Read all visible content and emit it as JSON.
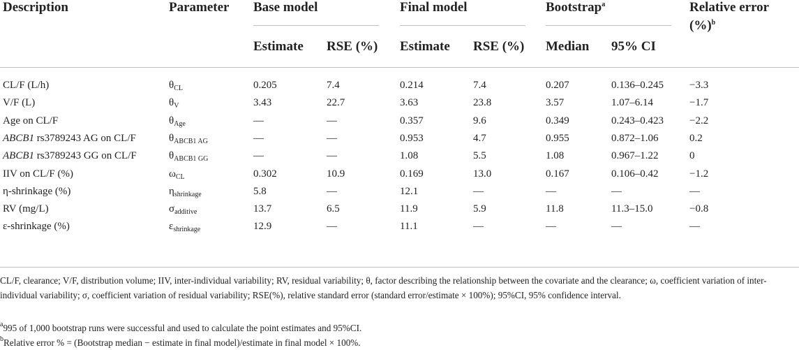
{
  "headers": {
    "description": "Description",
    "parameter": "Parameter",
    "base_model": "Base model",
    "final_model": "Final model",
    "bootstrap": "Bootstrap",
    "bootstrap_sup": "a",
    "relative_error_1": "Relative error",
    "relative_error_2": "(%)",
    "relative_error_sup": "b",
    "estimate_base": "Estimate",
    "rse_base": "RSE (%)",
    "estimate_final": "Estimate",
    "rse_final": "RSE (%)",
    "median": "Median",
    "ci": "95% CI"
  },
  "rows": [
    {
      "desc_italic": "",
      "desc": "CL/F (L/h)",
      "param": "θ",
      "param_sub": "CL",
      "base_est": "0.205",
      "base_rse": "7.4",
      "final_est": "0.214",
      "final_rse": "7.4",
      "median": "0.207",
      "ci": "0.136–0.245",
      "rel": "−3.3"
    },
    {
      "desc_italic": "",
      "desc": "V/F (L)",
      "param": "θ",
      "param_sub": "V",
      "base_est": "3.43",
      "base_rse": "22.7",
      "final_est": "3.63",
      "final_rse": "23.8",
      "median": "3.57",
      "ci": "1.07–6.14",
      "rel": "−1.7"
    },
    {
      "desc_italic": "",
      "desc": "Age on CL/F",
      "param": "θ",
      "param_sub": "Age",
      "base_est": "—",
      "base_rse": "—",
      "final_est": "0.357",
      "final_rse": "9.6",
      "median": "0.349",
      "ci": "0.243–0.423",
      "rel": "−2.2"
    },
    {
      "desc_italic": "ABCB1",
      "desc": " rs3789243 AG on CL/F",
      "param": "θ",
      "param_sub": "ABCB1 AG",
      "base_est": "—",
      "base_rse": "—",
      "final_est": "0.953",
      "final_rse": "4.7",
      "median": "0.955",
      "ci": "0.872–1.06",
      "rel": "0.2"
    },
    {
      "desc_italic": "ABCB1",
      "desc": " rs3789243 GG on CL/F",
      "param": "θ",
      "param_sub": "ABCB1 GG",
      "base_est": "—",
      "base_rse": "—",
      "final_est": "1.08",
      "final_rse": "5.5",
      "median": "1.08",
      "ci": "0.967–1.22",
      "rel": "0"
    },
    {
      "desc_italic": "",
      "desc": "IIV on CL/F (%)",
      "param": "ω",
      "param_sub": "CL",
      "base_est": "0.302",
      "base_rse": "10.9",
      "final_est": "0.169",
      "final_rse": "13.0",
      "median": "0.167",
      "ci": "0.106–0.42",
      "rel": "−1.2"
    },
    {
      "desc_italic": "",
      "desc": "η-shrinkage (%)",
      "param": "η",
      "param_sub": "shrinkage",
      "base_est": "5.8",
      "base_rse": "—",
      "final_est": "12.1",
      "final_rse": "—",
      "median": "—",
      "ci": "—",
      "rel": "—"
    },
    {
      "desc_italic": "",
      "desc": "RV (mg/L)",
      "param": "σ",
      "param_sub": "additive",
      "base_est": "13.7",
      "base_rse": "6.5",
      "final_est": "11.9",
      "final_rse": "5.9",
      "median": "11.8",
      "ci": "11.3–15.0",
      "rel": "−0.8"
    },
    {
      "desc_italic": "",
      "desc": "ε-shrinkage (%)",
      "param": "ε",
      "param_sub": "shrinkage",
      "base_est": "12.9",
      "base_rse": "—",
      "final_est": "11.1",
      "final_rse": "—",
      "median": "—",
      "ci": "—",
      "rel": "—"
    }
  ],
  "footnotes": {
    "abbreviations": "CL/F, clearance; V/F, distribution volume; IIV, inter-individual variability; RV, residual variability; θ, factor describing the relationship between the covariate and the clearance; ω, coefficient variation of inter-individual variability; σ, coefficient variation of residual variability; RSE(%), relative standard error (standard error/estimate × 100%); 95%CI, 95% confidence interval.",
    "a_mark": "a",
    "a_text": "995 of 1,000 bootstrap runs were successful and used to calculate the point estimates and 95%CI.",
    "b_mark": "b",
    "b_text": "Relative error % = (Bootstrap median − estimate in final model)/estimate in final model × 100%."
  }
}
